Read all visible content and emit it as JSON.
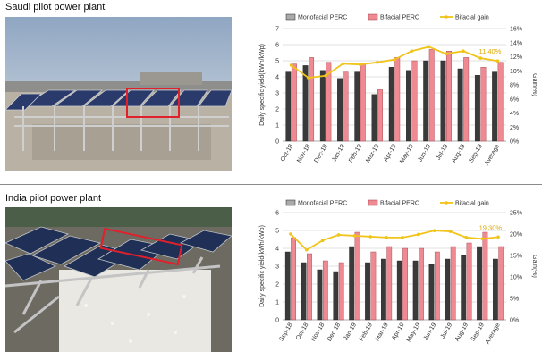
{
  "top_panel": {
    "title": "Saudi pilot power plant"
  },
  "bottom_panel": {
    "title": "India pilot power plant"
  },
  "colors": {
    "monofacial": "#3a3a3a",
    "bifacial": "#f08a92",
    "gain": "#f0c419",
    "highlight_box": "#e0202a"
  },
  "chart_data": [
    {
      "type": "bar",
      "categories": [
        "Oct-18",
        "Nov-18",
        "Dec-18",
        "Jan-19",
        "Feb-19",
        "Mar-19",
        "Apr-19",
        "May-19",
        "Jun-19",
        "Jul-19",
        "Aug-19",
        "Sep-19",
        "Average"
      ],
      "series": [
        {
          "name": "Monofacial PERC",
          "axis": "left",
          "values": [
            4.3,
            4.7,
            4.4,
            3.9,
            4.3,
            2.9,
            4.6,
            4.4,
            5.0,
            5.0,
            4.5,
            4.1,
            4.3
          ]
        },
        {
          "name": "Bifacial PERC",
          "axis": "left",
          "values": [
            4.8,
            5.2,
            4.9,
            4.3,
            4.8,
            3.2,
            5.2,
            5.0,
            5.7,
            5.6,
            5.2,
            4.6,
            4.9
          ]
        },
        {
          "name": "Bifacial gain",
          "axis": "right",
          "type": "line",
          "values": [
            10.8,
            9.0,
            9.3,
            11.0,
            10.9,
            11.2,
            11.6,
            12.8,
            13.4,
            12.4,
            12.8,
            11.8,
            11.4
          ]
        }
      ],
      "annotation": "11.40%",
      "ylabel": "Daily specific yield(kWh/kWp)",
      "y2label": "Gain(%)",
      "ylim": [
        0,
        7
      ],
      "yticks": [
        "0",
        "1",
        "2",
        "3",
        "4",
        "5",
        "6",
        "7"
      ],
      "y2lim": [
        0,
        16
      ],
      "y2ticks": [
        "0%",
        "2%",
        "4%",
        "6%",
        "8%",
        "10%",
        "12%",
        "14%",
        "16%"
      ],
      "legend": "top",
      "grid": true
    },
    {
      "type": "bar",
      "categories": [
        "Sep-18",
        "Oct-18",
        "Nov-18",
        "Dec-18",
        "Jan-19",
        "Feb-19",
        "Mar-19",
        "Apr-19",
        "May-19",
        "Jun-19",
        "Jul-19",
        "Aug-19",
        "Sep-19",
        "Average"
      ],
      "series": [
        {
          "name": "Monofacial PERC",
          "axis": "left",
          "values": [
            3.8,
            3.2,
            2.8,
            2.7,
            4.1,
            3.2,
            3.4,
            3.3,
            3.3,
            3.1,
            3.4,
            3.6,
            4.1,
            3.4
          ]
        },
        {
          "name": "Bifacial PERC",
          "axis": "left",
          "values": [
            4.6,
            3.7,
            3.3,
            3.2,
            4.9,
            3.8,
            4.1,
            4.0,
            4.0,
            3.8,
            4.1,
            4.3,
            4.9,
            4.1
          ]
        },
        {
          "name": "Bifacial gain",
          "axis": "right",
          "type": "line",
          "values": [
            20.0,
            16.3,
            18.5,
            19.8,
            19.6,
            19.4,
            19.2,
            19.2,
            19.9,
            20.8,
            20.6,
            19.2,
            18.9,
            19.3
          ]
        }
      ],
      "annotation": "19.30%",
      "ylabel": "Daily specific yield(kWh/kWp)",
      "y2label": "Gain(%)",
      "ylim": [
        0,
        6
      ],
      "yticks": [
        "0",
        "1",
        "2",
        "3",
        "4",
        "5",
        "6"
      ],
      "y2lim": [
        0,
        25
      ],
      "y2ticks": [
        "0%",
        "5%",
        "10%",
        "15%",
        "20%",
        "25%"
      ],
      "legend": "top",
      "grid": true
    }
  ]
}
